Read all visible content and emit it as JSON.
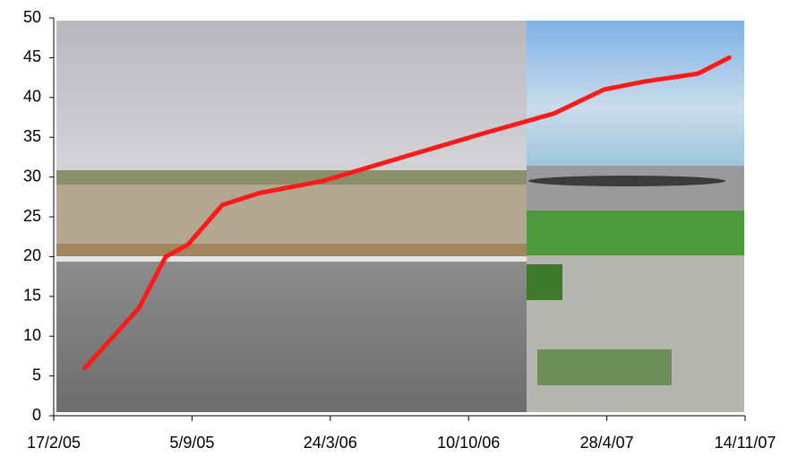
{
  "chart_data": {
    "type": "line",
    "x": [
      "2005-04-03",
      "2005-06-20",
      "2005-07-29",
      "2005-08-30",
      "2005-10-19",
      "2005-12-12",
      "2006-03-13",
      "2006-07-07",
      "2006-11-01",
      "2007-02-11",
      "2007-04-24",
      "2007-06-21",
      "2007-09-07",
      "2007-10-22"
    ],
    "series": [
      {
        "color": "#ff1a1a",
        "values": [
          6,
          13.5,
          20,
          21.5,
          26.5,
          28,
          29.5,
          32.5,
          35.5,
          38,
          41,
          42,
          43,
          45
        ]
      }
    ],
    "xlim": [
      "2005-02-17",
      "2007-11-14"
    ],
    "xticks": [
      {
        "value": "2005-02-17",
        "label": "17/2/05"
      },
      {
        "value": "2005-09-05",
        "label": "5/9/05"
      },
      {
        "value": "2006-03-24",
        "label": "24/3/06"
      },
      {
        "value": "2006-10-10",
        "label": "10/10/06"
      },
      {
        "value": "2007-04-28",
        "label": "28/4/07"
      },
      {
        "value": "2007-11-14",
        "label": "14/11/07"
      }
    ],
    "ylim": [
      0,
      50
    ],
    "yticks": [
      0,
      5,
      10,
      15,
      20,
      25,
      30,
      35,
      40,
      45,
      50
    ]
  }
}
